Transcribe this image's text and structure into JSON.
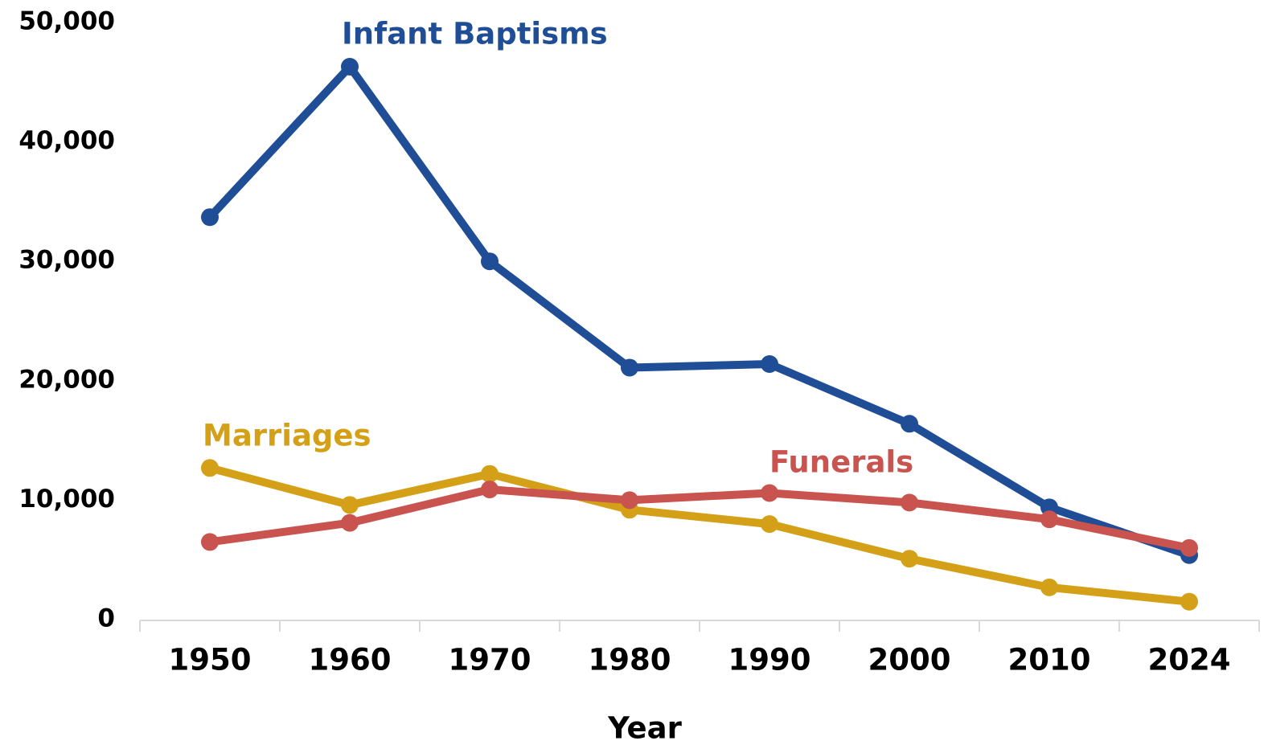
{
  "chart_data": {
    "type": "line",
    "x_label": "Year",
    "categories": [
      "1950",
      "1960",
      "1970",
      "1980",
      "1990",
      "2000",
      "2010",
      "2024"
    ],
    "series": [
      {
        "name": "Infant Baptisms",
        "color": "#1f4e96",
        "values": [
          33700,
          46300,
          30000,
          21100,
          21400,
          16400,
          9400,
          5400
        ]
      },
      {
        "name": "Marriages",
        "color": "#d4a017",
        "values": [
          12700,
          9600,
          12200,
          9200,
          8000,
          5100,
          2700,
          1500
        ]
      },
      {
        "name": "Funerals",
        "color": "#c9534f",
        "values": [
          6500,
          8100,
          10900,
          10000,
          10600,
          9800,
          8400,
          6000
        ]
      }
    ],
    "ylim": [
      0,
      50000
    ],
    "yticks": [
      0,
      {
        "value": 10000,
        "label": "10,000"
      },
      {
        "value": 20000,
        "label": "20,000"
      },
      {
        "value": 30000,
        "label": "30,000"
      },
      {
        "value": 40000,
        "label": "40,000"
      },
      {
        "value": 50000,
        "label": "50,000"
      }
    ],
    "grid": false
  }
}
